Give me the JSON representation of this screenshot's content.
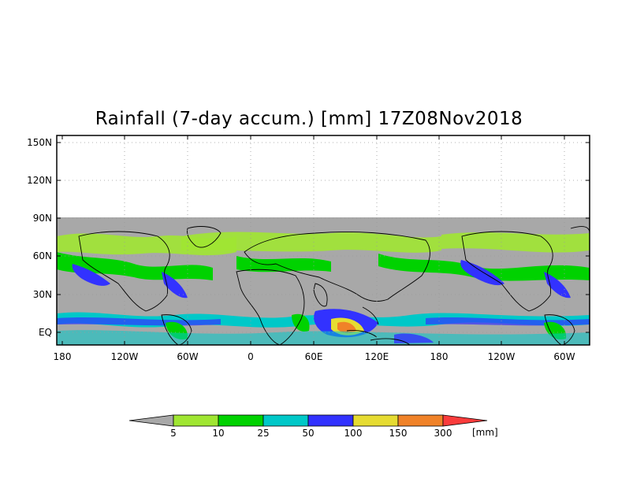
{
  "title": "Rainfall (7-day accum.) [mm] 17Z08Nov2018",
  "map": {
    "y_axis_labels": [
      "150N",
      "120N",
      "90N",
      "60N",
      "30N",
      "EQ"
    ],
    "x_axis_labels": [
      "180",
      "120W",
      "60W",
      "0",
      "60E",
      "120E",
      "180",
      "120W",
      "60W"
    ],
    "no_data_color": "#a8a8a8",
    "land_outline_color": "#000000"
  },
  "legend": {
    "unit": "[mm]",
    "thresholds": [
      "5",
      "10",
      "25",
      "50",
      "100",
      "150",
      "300"
    ],
    "colors": [
      "#a8a8a8",
      "#a0e632",
      "#00d200",
      "#00c8c8",
      "#3232ff",
      "#e6dc32",
      "#f08228",
      "#fa3c3c"
    ]
  }
}
